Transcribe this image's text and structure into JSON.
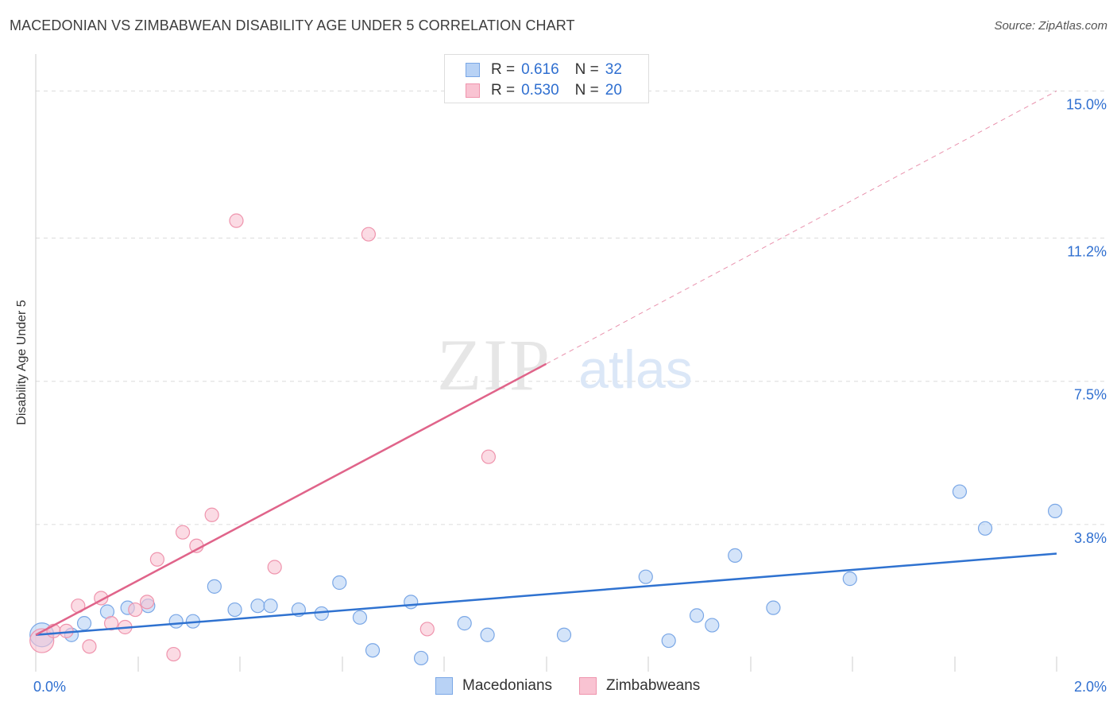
{
  "title": "MACEDONIAN VS ZIMBABWEAN DISABILITY AGE UNDER 5 CORRELATION CHART",
  "source": "Source: ZipAtlas.com",
  "watermark": {
    "zip": "ZIP",
    "atlas": "atlas"
  },
  "legend_top": {
    "rows": [
      {
        "r_label": "R =",
        "r_value": "0.616",
        "n_label": "N =",
        "n_value": "32",
        "fill": "#b8d2f5",
        "stroke": "#7aa7e6"
      },
      {
        "r_label": "R =",
        "r_value": "0.530",
        "n_label": "N =",
        "n_value": "20",
        "fill": "#f9c3d2",
        "stroke": "#ef94ad"
      }
    ]
  },
  "legend_bottom": [
    {
      "label": "Macedonians",
      "fill": "#b8d2f5",
      "stroke": "#7aa7e6"
    },
    {
      "label": "Zimbabweans",
      "fill": "#f9c3d2",
      "stroke": "#ef94ad"
    }
  ],
  "chart_data": {
    "type": "scatter",
    "title": "MACEDONIAN VS ZIMBABWEAN DISABILITY AGE UNDER 5 CORRELATION CHART",
    "xlabel": "",
    "ylabel": "Disability Age Under 5",
    "xlim": [
      0,
      2.0
    ],
    "ylim": [
      0,
      15.4
    ],
    "x_tick_labels": [
      {
        "value": 0.0,
        "label": "0.0%"
      },
      {
        "value": 2.0,
        "label": "2.0%"
      }
    ],
    "y_tick_labels": [
      {
        "value": 3.8,
        "label": "3.8%"
      },
      {
        "value": 7.5,
        "label": "7.5%"
      },
      {
        "value": 11.2,
        "label": "11.2%"
      },
      {
        "value": 15.0,
        "label": "15.0%"
      }
    ],
    "y_gridlines": [
      3.8,
      7.5,
      11.2,
      15.0
    ],
    "series": [
      {
        "name": "Macedonians",
        "color": "#2f72d0",
        "fill": "#b8d2f5",
        "stroke": "#7aa7e6",
        "points": [
          {
            "x": 0.012,
            "y": 0.95,
            "big": true
          },
          {
            "x": 0.07,
            "y": 0.95
          },
          {
            "x": 0.095,
            "y": 1.25
          },
          {
            "x": 0.14,
            "y": 1.55
          },
          {
            "x": 0.18,
            "y": 1.65
          },
          {
            "x": 0.22,
            "y": 1.7
          },
          {
            "x": 0.275,
            "y": 1.3
          },
          {
            "x": 0.308,
            "y": 1.3
          },
          {
            "x": 0.35,
            "y": 2.2
          },
          {
            "x": 0.39,
            "y": 1.6
          },
          {
            "x": 0.435,
            "y": 1.7
          },
          {
            "x": 0.46,
            "y": 1.7
          },
          {
            "x": 0.515,
            "y": 1.6
          },
          {
            "x": 0.56,
            "y": 1.5
          },
          {
            "x": 0.595,
            "y": 2.3
          },
          {
            "x": 0.635,
            "y": 1.4
          },
          {
            "x": 0.66,
            "y": 0.55
          },
          {
            "x": 0.735,
            "y": 1.8
          },
          {
            "x": 0.755,
            "y": 0.35
          },
          {
            "x": 0.84,
            "y": 1.25
          },
          {
            "x": 0.885,
            "y": 0.95
          },
          {
            "x": 1.035,
            "y": 0.95
          },
          {
            "x": 1.195,
            "y": 2.45
          },
          {
            "x": 1.24,
            "y": 0.8
          },
          {
            "x": 1.295,
            "y": 1.45
          },
          {
            "x": 1.325,
            "y": 1.2
          },
          {
            "x": 1.37,
            "y": 3.0
          },
          {
            "x": 1.445,
            "y": 1.65
          },
          {
            "x": 1.595,
            "y": 2.4
          },
          {
            "x": 1.81,
            "y": 4.65
          },
          {
            "x": 1.86,
            "y": 3.7
          },
          {
            "x": 1.997,
            "y": 4.15
          }
        ],
        "trend": {
          "x0": 0.0,
          "y0": 0.95,
          "x1": 2.0,
          "y1": 3.05
        }
      },
      {
        "name": "Zimbabweans",
        "color": "#e0648a",
        "fill": "#f9c3d2",
        "stroke": "#ef94ad",
        "points": [
          {
            "x": 0.012,
            "y": 0.8,
            "big": true
          },
          {
            "x": 0.035,
            "y": 1.05
          },
          {
            "x": 0.06,
            "y": 1.05
          },
          {
            "x": 0.083,
            "y": 1.7
          },
          {
            "x": 0.105,
            "y": 0.65
          },
          {
            "x": 0.128,
            "y": 1.9
          },
          {
            "x": 0.148,
            "y": 1.25
          },
          {
            "x": 0.175,
            "y": 1.15
          },
          {
            "x": 0.195,
            "y": 1.6
          },
          {
            "x": 0.218,
            "y": 1.8
          },
          {
            "x": 0.238,
            "y": 2.9
          },
          {
            "x": 0.27,
            "y": 0.45
          },
          {
            "x": 0.288,
            "y": 3.6
          },
          {
            "x": 0.315,
            "y": 3.25
          },
          {
            "x": 0.345,
            "y": 4.05
          },
          {
            "x": 0.393,
            "y": 11.65
          },
          {
            "x": 0.468,
            "y": 2.7
          },
          {
            "x": 0.652,
            "y": 11.3
          },
          {
            "x": 0.767,
            "y": 1.1
          },
          {
            "x": 0.887,
            "y": 5.55
          }
        ],
        "trend": {
          "x0": 0.0,
          "y0": 0.95,
          "x1": 1.0,
          "y1": 7.95
        },
        "trend_extended": {
          "x0": 1.0,
          "y0": 7.95,
          "x1": 2.0,
          "y1": 15.0
        }
      }
    ]
  }
}
